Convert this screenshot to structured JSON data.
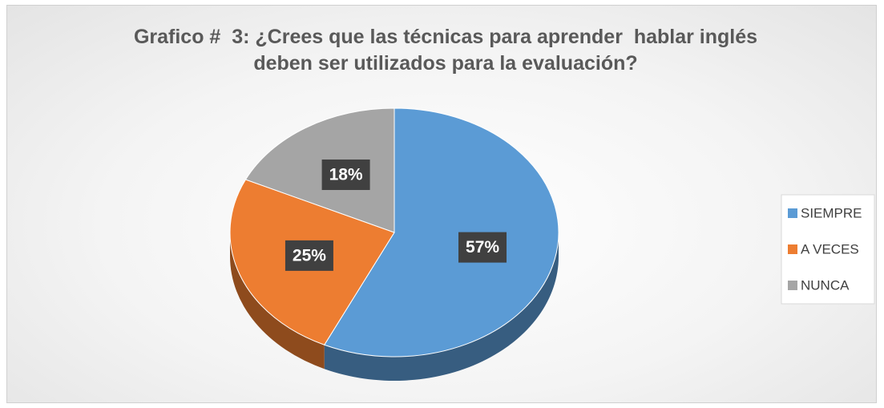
{
  "chart_data": {
    "type": "pie",
    "title": "Grafico #  3: ¿Crees que las técnicas para aprender  hablar inglés deben ser utilizados para la evaluación?",
    "categories": [
      "SIEMPRE",
      "A VECES",
      "NUNCA"
    ],
    "values": [
      57,
      25,
      18
    ],
    "value_labels": [
      "57%",
      "25%",
      "18%"
    ],
    "colors": [
      "#5b9bd5",
      "#ed7d31",
      "#a5a5a5"
    ],
    "legend": "right"
  }
}
